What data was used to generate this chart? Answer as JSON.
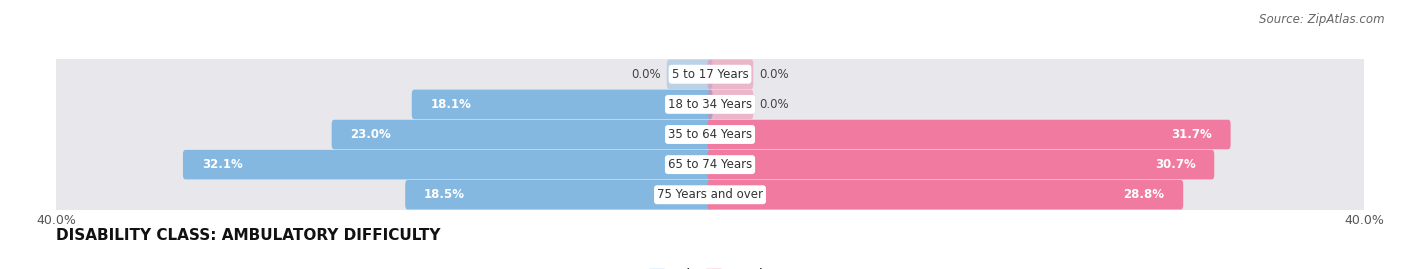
{
  "title": "DISABILITY CLASS: AMBULATORY DIFFICULTY",
  "source": "Source: ZipAtlas.com",
  "categories": [
    "5 to 17 Years",
    "18 to 34 Years",
    "35 to 64 Years",
    "65 to 74 Years",
    "75 Years and over"
  ],
  "male_values": [
    0.0,
    18.1,
    23.0,
    32.1,
    18.5
  ],
  "female_values": [
    0.0,
    0.0,
    31.7,
    30.7,
    28.8
  ],
  "male_color": "#85b8e0",
  "female_color": "#f07aa0",
  "bar_bg_color": "#e8e8ec",
  "axis_max": 40.0,
  "title_fontsize": 11,
  "label_fontsize": 8.5,
  "tick_fontsize": 9,
  "legend_fontsize": 9,
  "source_fontsize": 8.5,
  "stub_size": 2.5
}
